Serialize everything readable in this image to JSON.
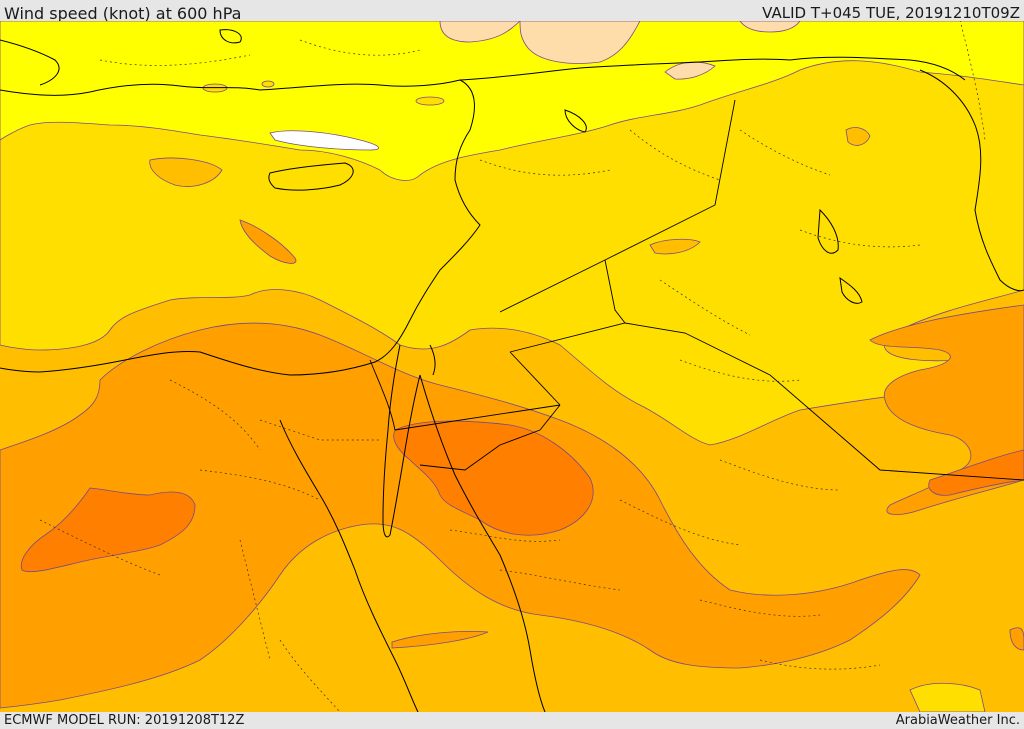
{
  "header": {
    "title": "Wind speed (knot) at 600 hPa",
    "valid": "VALID T+045 TUE, 20191210T09Z"
  },
  "footer": {
    "model_run": "ECMWF MODEL RUN: 20191208T12Z",
    "credit": "ArabiaWeather Inc."
  },
  "palette": {
    "band_lt10": "#ffffff",
    "band_10_20": "#ffff00",
    "band_20_30": "#ffdf00",
    "band_30_40": "#ffbf00",
    "band_40_50": "#ff9f00",
    "band_50_60": "#ff7f00",
    "band_low": "#ffddaa",
    "coastline": "#000000",
    "border": "#000000",
    "contour_edge": "#7a4a8a"
  }
}
